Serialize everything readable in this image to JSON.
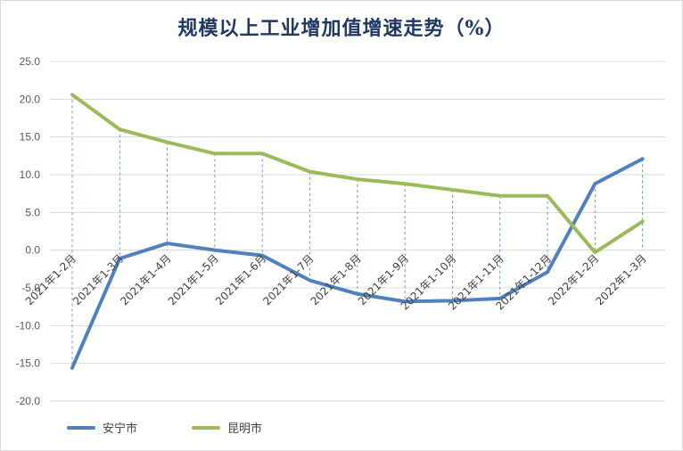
{
  "chart_data": {
    "type": "line",
    "title": "规模以上工业增加值增速走势（%）",
    "categories": [
      "2021年1-2月",
      "2021年1-3月",
      "2021年1-4月",
      "2021年1-5月",
      "2021年1-6月",
      "2021年1-7月",
      "2021年1-8月",
      "2021年1-9月",
      "2021年1-10月",
      "2021年1-11月",
      "2021年1-12月",
      "2022年1-2月",
      "2022年1-3月"
    ],
    "ylim": [
      -20,
      25
    ],
    "yticks": [
      "25.0",
      "20.0",
      "15.0",
      "10.0",
      "5.0",
      "0.0",
      "-5.0",
      "-10.0",
      "-15.0",
      "-20.0"
    ],
    "ytick_values": [
      25,
      20,
      15,
      10,
      5,
      0,
      -5,
      -10,
      -15,
      -20
    ],
    "grid": true,
    "legend_position": "bottom-left",
    "series": [
      {
        "name": "安宁市",
        "color": "#4f81bd",
        "values": [
          -15.6,
          -1.1,
          0.9,
          0.0,
          -0.7,
          -4.0,
          -5.8,
          -6.8,
          -6.7,
          -6.4,
          -2.9,
          8.8,
          12.1
        ]
      },
      {
        "name": "昆明市",
        "color": "#9bbb59",
        "values": [
          20.6,
          16.0,
          14.3,
          12.8,
          12.8,
          10.4,
          9.4,
          8.8,
          8.0,
          7.2,
          7.2,
          -0.3,
          3.8
        ]
      }
    ]
  }
}
